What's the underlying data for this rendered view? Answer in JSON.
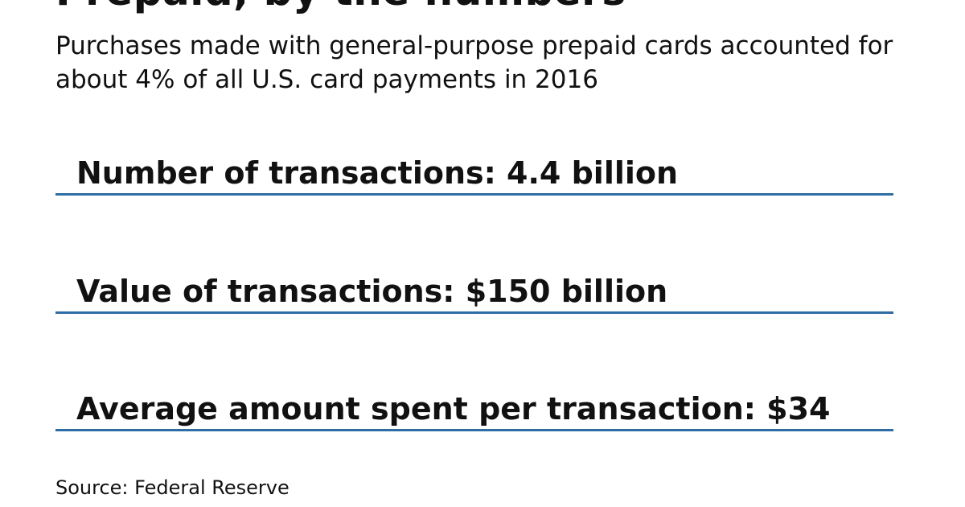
{
  "title": "Prepaid, by the numbers",
  "subtitle": "Purchases made with general-purpose prepaid cards accounted for about 4% of all U.S. card payments in 2016",
  "stats": [
    {
      "label": "Number of transactions: 4.4 billion"
    },
    {
      "label": "Value of transactions: $150 billion"
    },
    {
      "label": "Average amount spent per transaction: $34"
    }
  ],
  "source": "Source: Federal Reserve",
  "colors": {
    "rule": "#2e6da4",
    "text": "#111111"
  }
}
